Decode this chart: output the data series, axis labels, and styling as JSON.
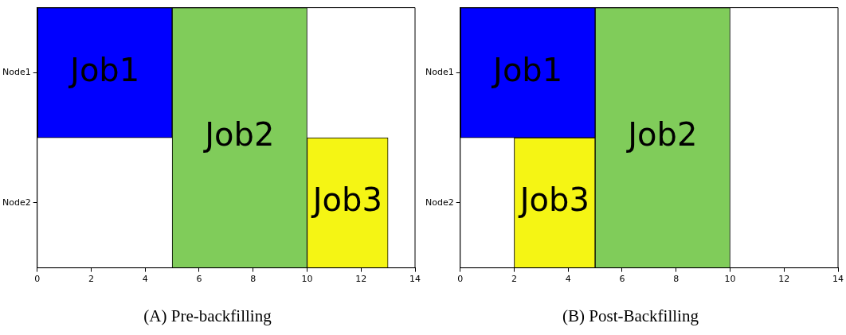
{
  "chart_data": [
    {
      "type": "bar",
      "title": "(A) Pre-backfilling",
      "orientation": "horizontal",
      "categories": [
        "Node1",
        "Node2"
      ],
      "xlim": [
        0,
        14
      ],
      "xticks": [
        0,
        2,
        4,
        6,
        8,
        10,
        12,
        14
      ],
      "grid": false,
      "legend": false,
      "series": [
        {
          "name": "Job1",
          "color": "#0000ff",
          "values": [
            5,
            null
          ],
          "base": [
            0,
            null
          ]
        },
        {
          "name": "Job2",
          "color": "#80cc5a",
          "values": [
            5,
            5
          ],
          "base": [
            5,
            5
          ]
        },
        {
          "name": "Job3",
          "color": "#f5f514",
          "values": [
            null,
            3
          ],
          "base": [
            null,
            10
          ]
        }
      ]
    },
    {
      "type": "bar",
      "title": "(B) Post-Backfilling",
      "orientation": "horizontal",
      "categories": [
        "Node1",
        "Node2"
      ],
      "xlim": [
        0,
        14
      ],
      "xticks": [
        0,
        2,
        4,
        6,
        8,
        10,
        12,
        14
      ],
      "grid": false,
      "legend": false,
      "series": [
        {
          "name": "Job1",
          "color": "#0000ff",
          "values": [
            5,
            null
          ],
          "base": [
            0,
            null
          ]
        },
        {
          "name": "Job2",
          "color": "#80cc5a",
          "values": [
            5,
            5
          ],
          "base": [
            5,
            5
          ]
        },
        {
          "name": "Job3",
          "color": "#f5f514",
          "values": [
            null,
            3
          ],
          "base": [
            null,
            2
          ]
        }
      ]
    }
  ]
}
